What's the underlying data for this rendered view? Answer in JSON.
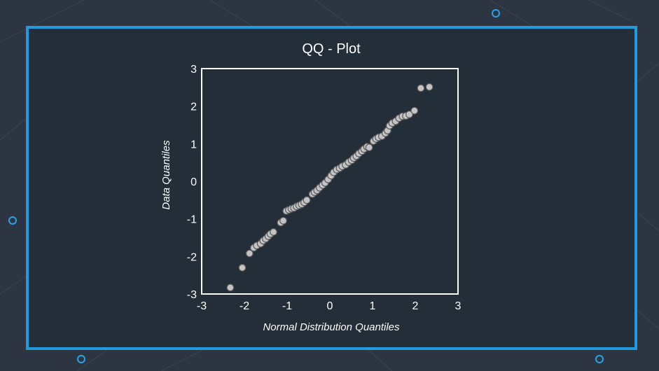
{
  "theme": {
    "background": "#2c3541",
    "panel": "#242e39",
    "accent": "#1f9bde",
    "axis": "#ffffff",
    "marker_fill": "#c4c4c4",
    "marker_edge": "#5a5a5a"
  },
  "chart_data": {
    "type": "scatter",
    "title": "QQ - Plot",
    "xlabel": "Normal Distribution Quantiles",
    "ylabel": "Data Quantiles",
    "xlim": [
      -3,
      3
    ],
    "ylim": [
      -3,
      3
    ],
    "xticks": [
      "-3",
      "-2",
      "-1",
      "0",
      "1",
      "2",
      "3"
    ],
    "yticks": [
      "-3",
      "-2",
      "-1",
      "0",
      "1",
      "2",
      "3"
    ],
    "grid": false,
    "legend": "none",
    "points": [
      [
        -2.33,
        -2.83
      ],
      [
        -2.05,
        -2.3
      ],
      [
        -1.88,
        -1.92
      ],
      [
        -1.78,
        -1.77
      ],
      [
        -1.71,
        -1.71
      ],
      [
        -1.62,
        -1.66
      ],
      [
        -1.56,
        -1.58
      ],
      [
        -1.5,
        -1.53
      ],
      [
        -1.44,
        -1.46
      ],
      [
        -1.39,
        -1.4
      ],
      [
        -1.32,
        -1.35
      ],
      [
        -1.15,
        -1.1
      ],
      [
        -1.09,
        -1.05
      ],
      [
        -1.02,
        -0.79
      ],
      [
        -0.96,
        -0.76
      ],
      [
        -0.9,
        -0.73
      ],
      [
        -0.84,
        -0.71
      ],
      [
        -0.78,
        -0.67
      ],
      [
        -0.72,
        -0.64
      ],
      [
        -0.66,
        -0.61
      ],
      [
        -0.6,
        -0.56
      ],
      [
        -0.54,
        -0.5
      ],
      [
        -0.41,
        -0.34
      ],
      [
        -0.36,
        -0.29
      ],
      [
        -0.3,
        -0.24
      ],
      [
        -0.24,
        -0.17
      ],
      [
        -0.17,
        -0.1
      ],
      [
        -0.11,
        -0.04
      ],
      [
        -0.04,
        0.05
      ],
      [
        0.03,
        0.15
      ],
      [
        0.09,
        0.24
      ],
      [
        0.16,
        0.31
      ],
      [
        0.23,
        0.35
      ],
      [
        0.29,
        0.4
      ],
      [
        0.37,
        0.44
      ],
      [
        0.44,
        0.51
      ],
      [
        0.51,
        0.56
      ],
      [
        0.56,
        0.62
      ],
      [
        0.62,
        0.67
      ],
      [
        0.68,
        0.74
      ],
      [
        0.75,
        0.8
      ],
      [
        0.8,
        0.86
      ],
      [
        0.87,
        0.92
      ],
      [
        0.92,
        0.9
      ],
      [
        1.02,
        1.07
      ],
      [
        1.08,
        1.13
      ],
      [
        1.14,
        1.17
      ],
      [
        1.22,
        1.2
      ],
      [
        1.3,
        1.28
      ],
      [
        1.35,
        1.35
      ],
      [
        1.4,
        1.48
      ],
      [
        1.46,
        1.55
      ],
      [
        1.54,
        1.6
      ],
      [
        1.62,
        1.68
      ],
      [
        1.7,
        1.73
      ],
      [
        1.78,
        1.74
      ],
      [
        1.86,
        1.78
      ],
      [
        1.98,
        1.88
      ],
      [
        2.13,
        2.48
      ],
      [
        2.33,
        2.51
      ]
    ]
  }
}
